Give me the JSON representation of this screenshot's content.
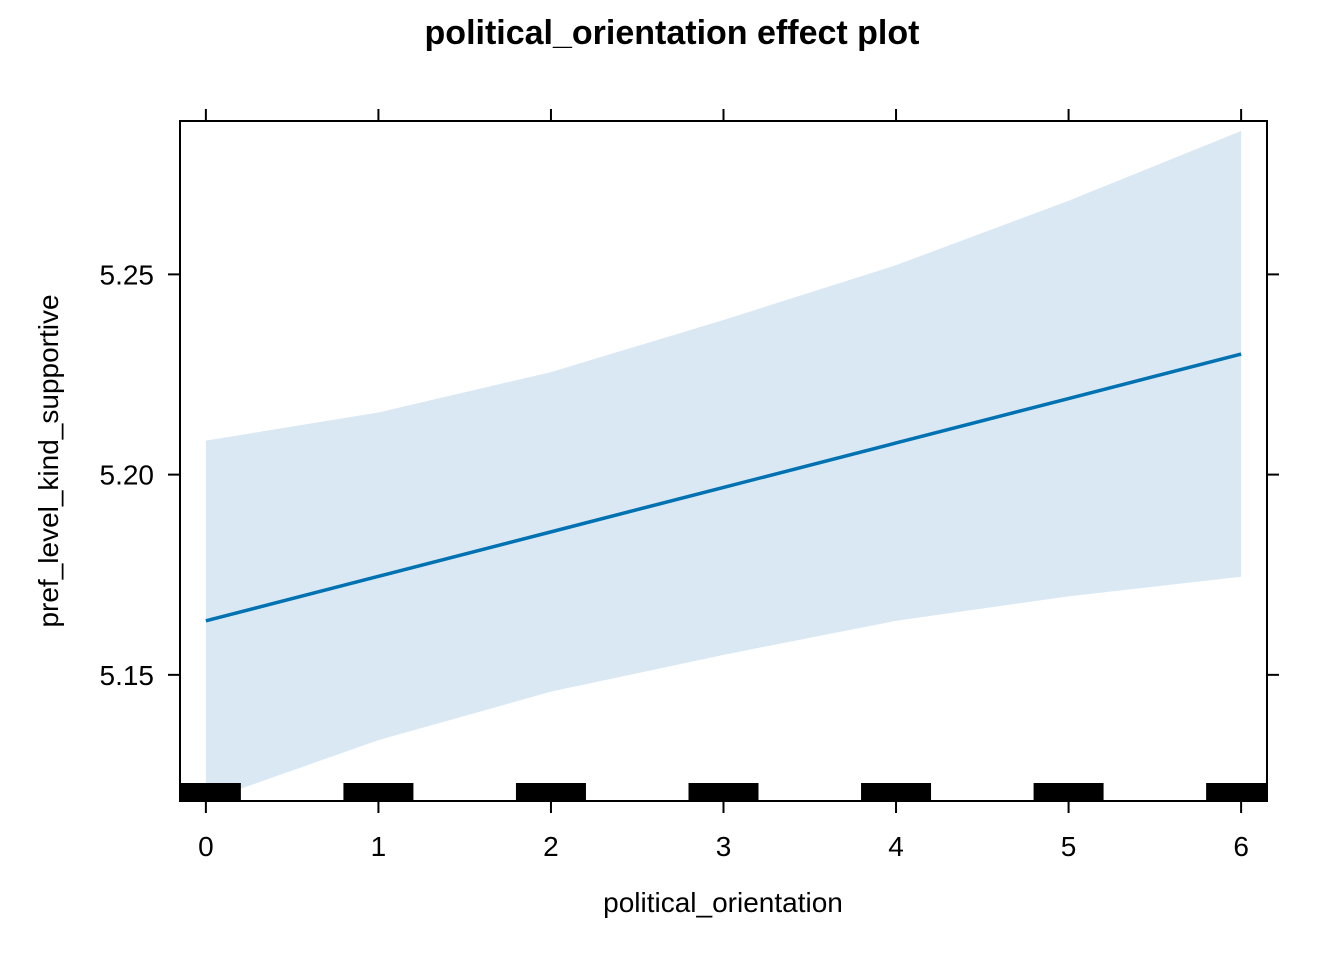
{
  "chart_data": {
    "type": "line",
    "title": "political_orientation effect plot",
    "xlabel": "political_orientation",
    "ylabel": "pref_level_kind_supportive",
    "xlim": [
      -0.15,
      6.15
    ],
    "ylim": [
      5.1185,
      5.2883
    ],
    "x_ticks": [
      0,
      1,
      2,
      3,
      4,
      5,
      6
    ],
    "x_tick_labels": [
      "0",
      "1",
      "2",
      "3",
      "4",
      "5",
      "6"
    ],
    "y_ticks": [
      5.15,
      5.2,
      5.25
    ],
    "y_tick_labels": [
      "5.15",
      "5.20",
      "5.25"
    ],
    "series": [
      {
        "x": [
          0,
          1,
          2,
          3,
          4,
          5,
          6
        ],
        "y": [
          5.1635,
          5.1746,
          5.1857,
          5.1968,
          5.2079,
          5.219,
          5.2301
        ],
        "lower": [
          5.1185,
          5.1337,
          5.1458,
          5.155,
          5.1635,
          5.1696,
          5.1745
        ],
        "upper": [
          5.2085,
          5.2155,
          5.2256,
          5.2386,
          5.2523,
          5.2684,
          5.2858
        ]
      }
    ],
    "rug": [
      0,
      1,
      2,
      3,
      4,
      5,
      6
    ],
    "colors": {
      "line": "#0072b2",
      "band": "#dae8f4",
      "rug": "#000000"
    },
    "grid": false,
    "legend": "none"
  }
}
